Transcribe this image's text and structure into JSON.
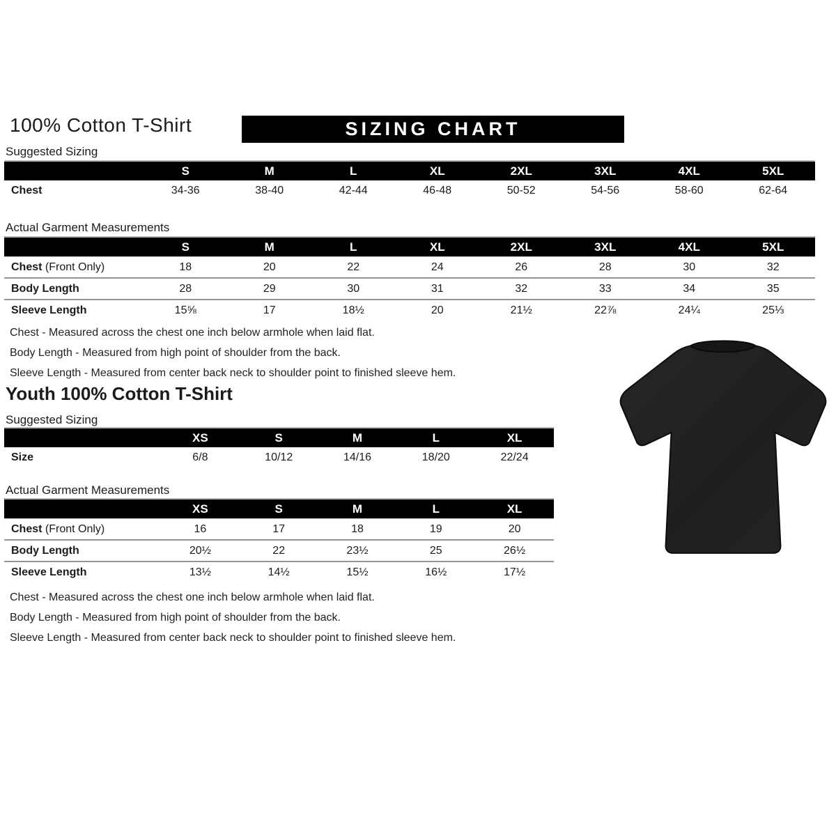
{
  "adult": {
    "title": "100% Cotton T-Shirt",
    "banner": "SIZING CHART",
    "suggested_heading": "Suggested Sizing",
    "actual_heading": "Actual Garment Measurements",
    "suggested_table": {
      "headers": [
        "S",
        "M",
        "L",
        "XL",
        "2XL",
        "3XL",
        "4XL",
        "5XL"
      ],
      "rows": [
        {
          "label": "Chest",
          "suffix": "",
          "values": [
            "34-36",
            "38-40",
            "42-44",
            "46-48",
            "50-52",
            "54-56",
            "58-60",
            "62-64"
          ]
        }
      ]
    },
    "actual_table": {
      "headers": [
        "S",
        "M",
        "L",
        "XL",
        "2XL",
        "3XL",
        "4XL",
        "5XL"
      ],
      "rows": [
        {
          "label": "Chest",
          "suffix": " (Front Only)",
          "values": [
            "18",
            "20",
            "22",
            "24",
            "26",
            "28",
            "30",
            "32"
          ]
        },
        {
          "label": "Body Length",
          "suffix": "",
          "values": [
            "28",
            "29",
            "30",
            "31",
            "32",
            "33",
            "34",
            "35"
          ]
        },
        {
          "label": "Sleeve Length",
          "suffix": "",
          "values": [
            "15⅝",
            "17",
            "18½",
            "20",
            "21½",
            "22⅞",
            "24¼",
            "25⅓"
          ]
        }
      ]
    },
    "notes": [
      "Chest - Measured across the chest one inch below armhole when laid flat.",
      "Body Length - Measured from high point of shoulder from the back.",
      "Sleeve Length - Measured from center back neck to shoulder point to finished sleeve hem."
    ]
  },
  "youth": {
    "title": "Youth 100% Cotton T-Shirt",
    "suggested_heading": "Suggested Sizing",
    "actual_heading": "Actual Garment Measurements",
    "suggested_table": {
      "headers": [
        "XS",
        "S",
        "M",
        "L",
        "XL"
      ],
      "rows": [
        {
          "label": "Size",
          "suffix": "",
          "values": [
            "6/8",
            "10/12",
            "14/16",
            "18/20",
            "22/24"
          ]
        }
      ]
    },
    "actual_table": {
      "headers": [
        "XS",
        "S",
        "M",
        "L",
        "XL"
      ],
      "rows": [
        {
          "label": "Chest",
          "suffix": " (Front Only)",
          "values": [
            "16",
            "17",
            "18",
            "19",
            "20"
          ]
        },
        {
          "label": "Body Length",
          "suffix": "",
          "values": [
            "20½",
            "22",
            "23½",
            "25",
            "26½"
          ]
        },
        {
          "label": "Sleeve Length",
          "suffix": "",
          "values": [
            "13½",
            "14½",
            "15½",
            "16½",
            "17½"
          ]
        }
      ]
    },
    "notes": [
      "Chest - Measured across the chest one inch below armhole when laid flat.",
      "Body Length - Measured from high point of shoulder from the back.",
      "Sleeve Length - Measured from center back neck to shoulder point to finished sleeve hem."
    ]
  },
  "tshirt_image": {
    "description": "plain black short-sleeve crew-neck t-shirt product photo",
    "shirt_color": "#222222",
    "collar_color": "#161616"
  },
  "colors": {
    "header_bar_bg": "#000000",
    "header_bar_text": "#ffffff",
    "body_text": "#1b1b1b",
    "row_divider": "#949494"
  }
}
